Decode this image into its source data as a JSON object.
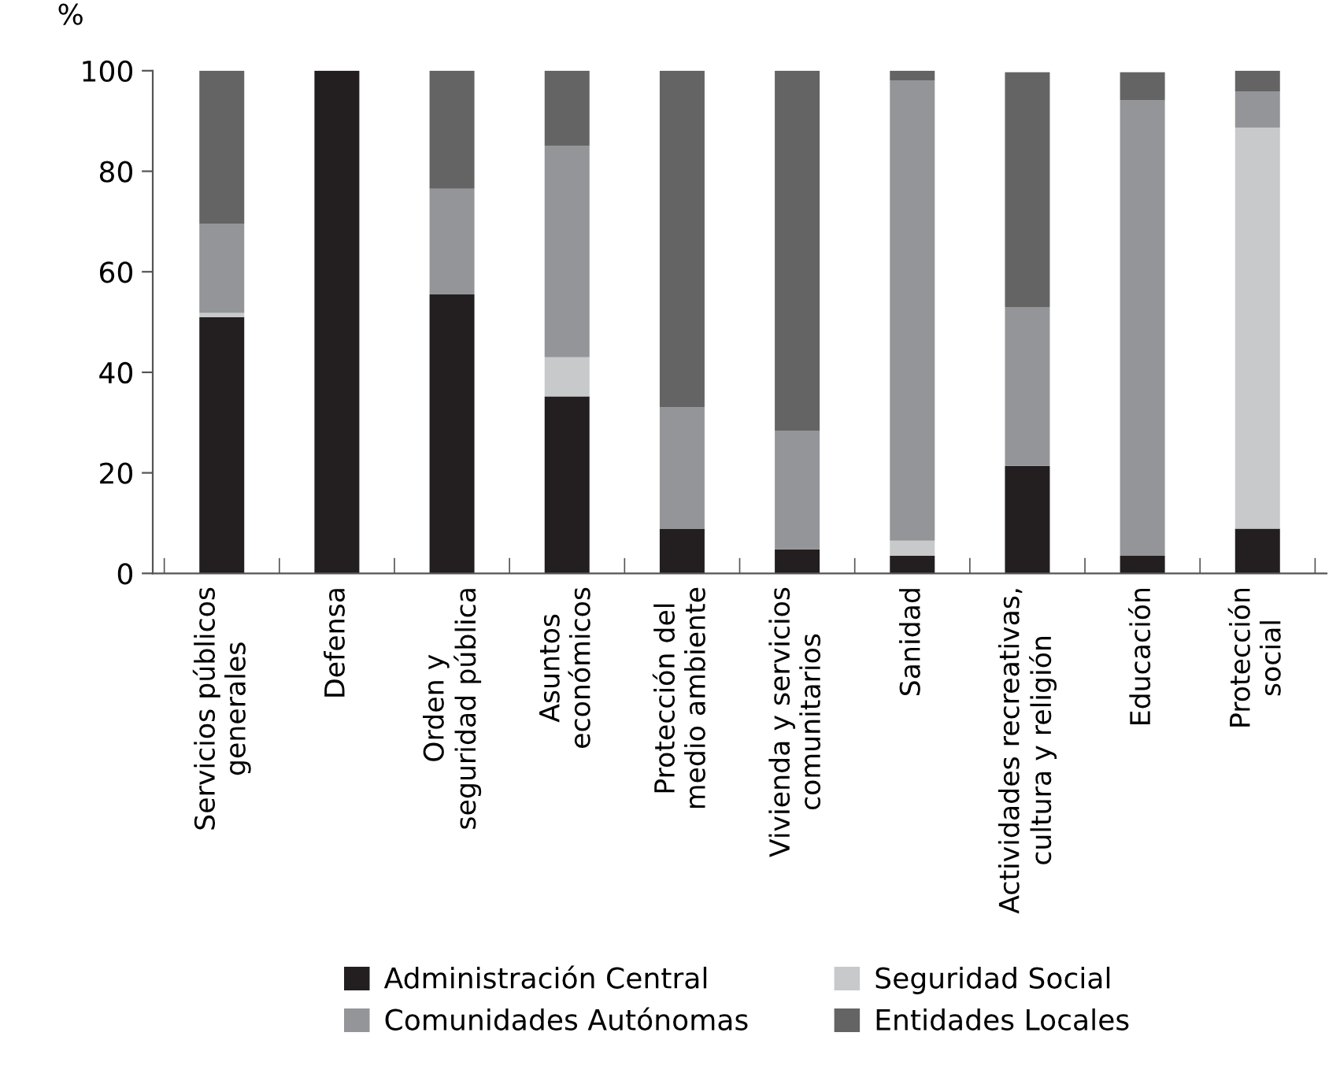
{
  "chart_data": {
    "type": "bar",
    "stacked": true,
    "ylabel": "%",
    "categories": [
      "Servicios públicos\ngenerales",
      "Defensa",
      "Orden y\nseguridad pública",
      "Asuntos\neconómicos",
      "Protección del\nmedio ambiente",
      "Vivienda y servicios\ncomunitarios",
      "Sanidad",
      "Actividades recreativas,\ncultura y religión",
      "Educación",
      "Protección\nsocial"
    ],
    "series": [
      {
        "name": "Administración Central",
        "color": "#231f20",
        "values": [
          51.0,
          100,
          55.5,
          35.2,
          8.9,
          4.8,
          3.5,
          21.4,
          3.5,
          8.9
        ]
      },
      {
        "name": "Seguridad Social",
        "color": "#c8c9cb",
        "values": [
          0.8,
          0,
          0,
          7.8,
          0,
          0,
          3.0,
          0,
          0,
          79.8
        ]
      },
      {
        "name": "Comunidades Autónomas",
        "color": "#949598",
        "values": [
          17.8,
          0,
          21.0,
          42.0,
          24.1,
          23.5,
          91.6,
          31.6,
          90.6,
          7.2
        ]
      },
      {
        "name": "Entidades Locales",
        "color": "#646465",
        "values": [
          30.4,
          0,
          23.5,
          15.0,
          67.0,
          71.7,
          1.9,
          46.7,
          5.6,
          4.1
        ]
      }
    ],
    "ylim": [
      0,
      100
    ],
    "yticks": [
      0,
      20,
      40,
      60,
      80,
      100
    ],
    "grid": false,
    "legend": "bottom"
  }
}
